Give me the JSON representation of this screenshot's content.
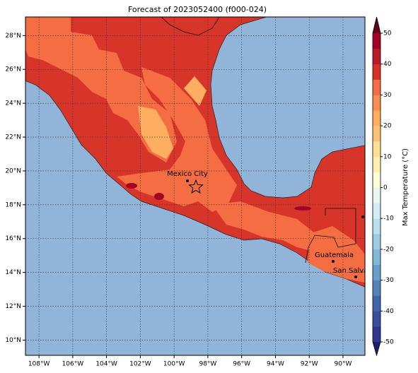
{
  "chart_data": {
    "type": "map",
    "title": "Forecast of 2023052400 (f000-024)",
    "xlim": [
      -108.8,
      -88.7
    ],
    "ylim": [
      9.1,
      29.1
    ],
    "xticks": [
      {
        "value": -108,
        "label": "108°W"
      },
      {
        "value": -106,
        "label": "106°W"
      },
      {
        "value": -104,
        "label": "104°W"
      },
      {
        "value": -102,
        "label": "102°W"
      },
      {
        "value": -100,
        "label": "100°W"
      },
      {
        "value": -98,
        "label": "98°W"
      },
      {
        "value": -96,
        "label": "96°W"
      },
      {
        "value": -94,
        "label": "94°W"
      },
      {
        "value": -92,
        "label": "92°W"
      },
      {
        "value": -90,
        "label": "90°W"
      }
    ],
    "yticks": [
      {
        "value": 10,
        "label": "10°N"
      },
      {
        "value": 12,
        "label": "12°N"
      },
      {
        "value": 14,
        "label": "14°N"
      },
      {
        "value": 16,
        "label": "16°N"
      },
      {
        "value": 18,
        "label": "18°N"
      },
      {
        "value": 20,
        "label": "20°N"
      },
      {
        "value": 22,
        "label": "22°N"
      },
      {
        "value": 24,
        "label": "24°N"
      },
      {
        "value": 26,
        "label": "26°N"
      },
      {
        "value": 28,
        "label": "28°N"
      }
    ],
    "grid": true,
    "annotations": [
      "Mexico City",
      "Guatemala",
      "San Salvador"
    ],
    "colorbar": {
      "label": "Max Temperature (°C)",
      "lim": [
        -50,
        50
      ],
      "ticks": [
        -50,
        -40,
        -30,
        -20,
        -10,
        0,
        10,
        20,
        30,
        40,
        50
      ],
      "colors": [
        "#313695",
        "#394ea0",
        "#4166ad",
        "#5483bb",
        "#6a9fca",
        "#82b8d8",
        "#9dcce3",
        "#b8e0ed",
        "#d3edf4",
        "#eaf6f0",
        "#fbfdd8",
        "#fff0b0",
        "#fee090",
        "#fdc174",
        "#fdae61",
        "#f88d51",
        "#f46d43",
        "#d73027",
        "#bd1a28",
        "#a50026"
      ]
    }
  }
}
